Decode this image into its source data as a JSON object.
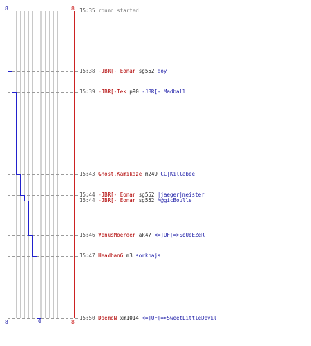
{
  "colors": {
    "team_red": "#b00000",
    "team_blue": "#1a1aa6",
    "timestamp": "#555555",
    "system": "#777777",
    "weapon": "#222222",
    "step_line": "#2222cc",
    "red_axis": "#cc2222",
    "grid": "#c8c8c8",
    "zero_line": "#555555"
  },
  "axes": {
    "left_label": "8",
    "right_label": "8",
    "bottom_zero": "0",
    "bottom_right": "8"
  },
  "chart_data": {
    "type": "line",
    "x_label_left": "8",
    "x_label_right": "8",
    "x_label_zero": "0",
    "step_points": [
      {
        "time": "15:35",
        "value": 8
      },
      {
        "time": "15:38",
        "value": 7
      },
      {
        "time": "15:39",
        "value": 6
      },
      {
        "time": "15:43",
        "value": 5
      },
      {
        "time": "15:44",
        "value": 4
      },
      {
        "time": "15:44",
        "value": 3
      },
      {
        "time": "15:46",
        "value": 2
      },
      {
        "time": "15:47",
        "value": 1
      },
      {
        "time": "15:50",
        "value": 0
      }
    ]
  },
  "log": [
    {
      "time": "15:35",
      "text": "round started",
      "type": "system"
    },
    {
      "time": "15:38",
      "killer": "-JBR[- Eonar",
      "killer_team": "red",
      "weapon": "sg552",
      "victim": "doy",
      "victim_team": "blue"
    },
    {
      "time": "15:39",
      "killer": "-JBR[-Tek",
      "killer_team": "red",
      "weapon": "p90",
      "victim": "-JBR[- Madball",
      "victim_team": "blue"
    },
    {
      "time": "15:43",
      "killer": "Ghost.Kamikaze",
      "killer_team": "red",
      "weapon": "m249",
      "victim": "CC|Killabee",
      "victim_team": "blue"
    },
    {
      "time": "15:44",
      "killer": "-JBR[- Eonar",
      "killer_team": "red",
      "weapon": "sg552",
      "victim": "|jaeger|meister",
      "victim_team": "blue"
    },
    {
      "time": "15:44",
      "killer": "-JBR[- Eonar",
      "killer_team": "red",
      "weapon": "sg552",
      "victim": "M@gicBoulle",
      "victim_team": "blue"
    },
    {
      "time": "15:46",
      "killer": "VenusMoerder",
      "killer_team": "red",
      "weapon": "ak47",
      "victim": "<=]UF[=>SqUeEZeR",
      "victim_team": "blue"
    },
    {
      "time": "15:47",
      "killer": "HeadbanG",
      "killer_team": "red",
      "weapon": "m3",
      "victim": "sorkbajs",
      "victim_team": "blue"
    },
    {
      "time": "15:50",
      "killer": "DaemoN",
      "killer_team": "red",
      "weapon": "xm1014",
      "victim": "<=]UF[=>SweetLittleDevil",
      "victim_team": "blue"
    }
  ]
}
